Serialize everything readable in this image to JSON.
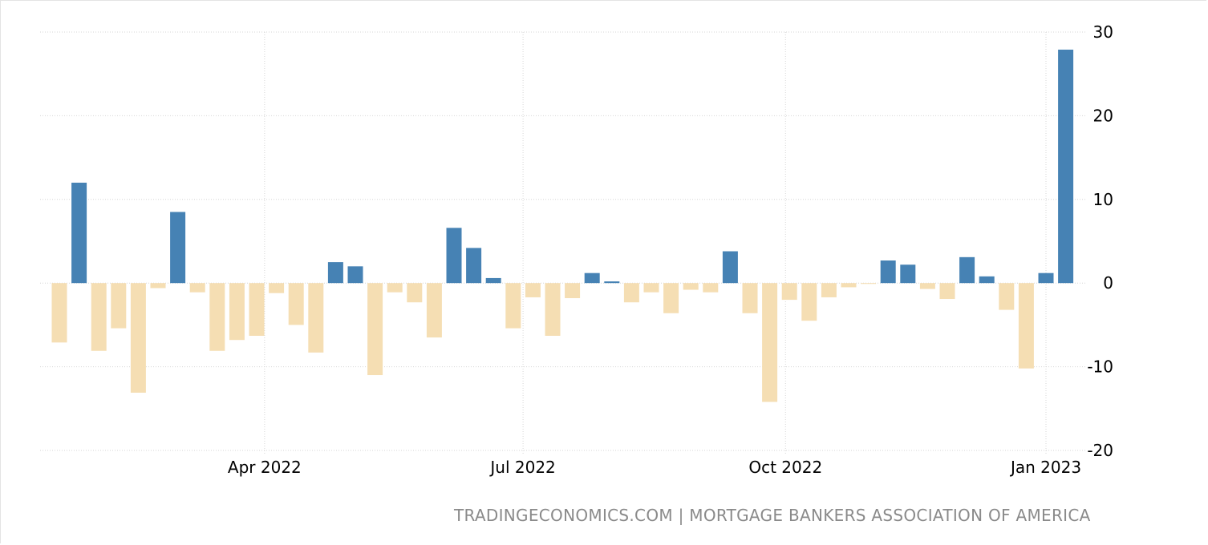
{
  "source": "TRADINGECONOMICS.COM | MORTGAGE BANKERS ASSOCIATION OF AMERICA",
  "colors": {
    "positive": "#4682b4",
    "negative": "#f5deb3",
    "grid": "#d6d6d6"
  },
  "chart_data": {
    "type": "bar",
    "title": "",
    "xlabel": "",
    "ylabel": "",
    "ylim": [
      -20,
      30
    ],
    "y_ticks": [
      30,
      20,
      10,
      0,
      -10,
      -20
    ],
    "y_axis_position": "right",
    "grid": true,
    "x_ticks": [
      {
        "label": "Apr 2022",
        "index": 10.4
      },
      {
        "label": "Jul 2022",
        "index": 23.5
      },
      {
        "label": "Oct 2022",
        "index": 36.8
      },
      {
        "label": "Jan 2023",
        "index": 50.0
      }
    ],
    "values": [
      -7.1,
      12.0,
      -8.1,
      -5.4,
      -13.1,
      -0.6,
      8.5,
      -1.1,
      -8.1,
      -6.8,
      -6.3,
      -1.2,
      -5.0,
      -8.3,
      2.5,
      2.0,
      -11.0,
      -1.1,
      -2.3,
      -6.5,
      6.6,
      4.2,
      0.6,
      -5.4,
      -1.7,
      -6.3,
      -1.8,
      1.2,
      0.2,
      -2.3,
      -1.1,
      -3.6,
      -0.8,
      -1.1,
      3.8,
      -3.6,
      -14.2,
      -2.0,
      -4.5,
      -1.7,
      -0.5,
      -0.1,
      2.7,
      2.2,
      -0.7,
      -1.9,
      3.1,
      0.8,
      -3.2,
      -10.2,
      1.2,
      27.9
    ]
  }
}
